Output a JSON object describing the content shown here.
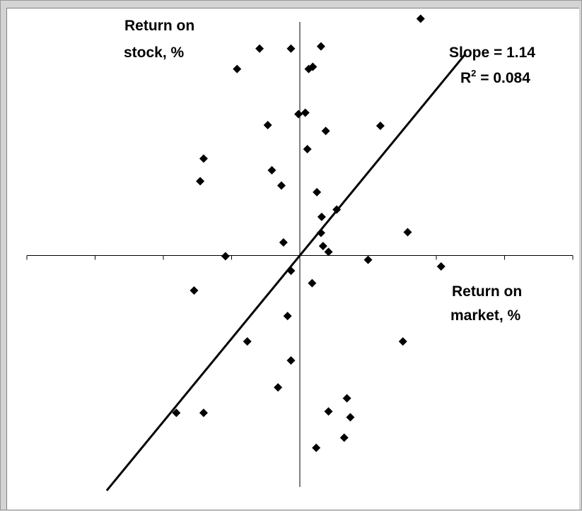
{
  "chart_data": {
    "type": "scatter",
    "ylabel_lines": [
      "Return on",
      "stock, %"
    ],
    "xlabel_lines": [
      "Return on",
      "market, %"
    ],
    "annotation": {
      "slope_text": "Slope = 1.14",
      "r2_prefix": "R",
      "r2_sup": "2",
      "r2_suffix": " = 0.084"
    },
    "xlim": [
      -4,
      4
    ],
    "ylim": [
      -3.4,
      3.4
    ],
    "grid": false,
    "fit_line": {
      "slope": 1.14,
      "intercept": 0,
      "x_range": [
        -2.83,
        2.43
      ]
    },
    "points": [
      {
        "x": 1.77,
        "y": 3.25
      },
      {
        "x": -0.59,
        "y": 2.84
      },
      {
        "x": -0.13,
        "y": 2.84
      },
      {
        "x": 0.31,
        "y": 2.87
      },
      {
        "x": -0.92,
        "y": 2.56
      },
      {
        "x": 0.13,
        "y": 2.56
      },
      {
        "x": 0.19,
        "y": 2.59
      },
      {
        "x": -0.02,
        "y": 1.94
      },
      {
        "x": 0.08,
        "y": 1.96
      },
      {
        "x": -0.47,
        "y": 1.79
      },
      {
        "x": 0.38,
        "y": 1.71
      },
      {
        "x": 1.18,
        "y": 1.78
      },
      {
        "x": 0.11,
        "y": 1.46
      },
      {
        "x": -1.41,
        "y": 1.33
      },
      {
        "x": -0.41,
        "y": 1.17
      },
      {
        "x": -1.46,
        "y": 1.02
      },
      {
        "x": -0.27,
        "y": 0.96
      },
      {
        "x": 0.25,
        "y": 0.87
      },
      {
        "x": 0.54,
        "y": 0.63
      },
      {
        "x": 0.32,
        "y": 0.53
      },
      {
        "x": 0.31,
        "y": 0.31
      },
      {
        "x": -0.24,
        "y": 0.18
      },
      {
        "x": 0.34,
        "y": 0.13
      },
      {
        "x": 0.42,
        "y": 0.05
      },
      {
        "x": 1.58,
        "y": 0.32
      },
      {
        "x": -1.09,
        "y": -0.01
      },
      {
        "x": 1.0,
        "y": -0.06
      },
      {
        "x": 2.07,
        "y": -0.15
      },
      {
        "x": -0.13,
        "y": -0.21
      },
      {
        "x": 0.18,
        "y": -0.38
      },
      {
        "x": -1.55,
        "y": -0.48
      },
      {
        "x": -0.18,
        "y": -0.83
      },
      {
        "x": -0.77,
        "y": -1.18
      },
      {
        "x": 1.51,
        "y": -1.18
      },
      {
        "x": -0.13,
        "y": -1.44
      },
      {
        "x": -0.32,
        "y": -1.81
      },
      {
        "x": 0.69,
        "y": -1.96
      },
      {
        "x": -1.81,
        "y": -2.16
      },
      {
        "x": -1.41,
        "y": -2.16
      },
      {
        "x": 0.42,
        "y": -2.14
      },
      {
        "x": 0.74,
        "y": -2.22
      },
      {
        "x": 0.65,
        "y": -2.5
      },
      {
        "x": 0.24,
        "y": -2.64
      }
    ]
  }
}
